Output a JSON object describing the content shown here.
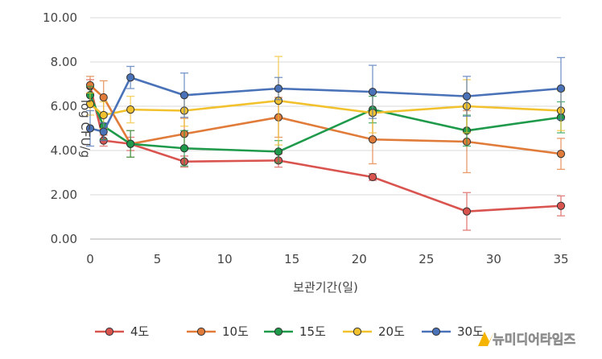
{
  "chart_data": {
    "type": "line",
    "title": "",
    "xlabel": "보관기간(일)",
    "ylabel": "log CFU/g",
    "xlim": [
      0,
      35
    ],
    "ylim": [
      0,
      10
    ],
    "x_ticks": [
      "0",
      "5",
      "10",
      "15",
      "20",
      "25",
      "30",
      "35"
    ],
    "y_ticks": [
      "0.00",
      "2.00",
      "4.00",
      "6.00",
      "8.00",
      "10.00"
    ],
    "grid": "horizontal",
    "legend": "bottom",
    "series": [
      {
        "name": "4도",
        "color": "#d9534f",
        "x": [
          0,
          1,
          3,
          7,
          14,
          21,
          28,
          35
        ],
        "y": [
          6.9,
          4.45,
          4.3,
          3.5,
          3.55,
          2.8,
          1.25,
          1.5
        ],
        "err": [
          0.3,
          0.25,
          0.3,
          0.25,
          0.3,
          0.15,
          0.85,
          0.45
        ]
      },
      {
        "name": "10도",
        "color": "#e07b39",
        "x": [
          0,
          1,
          3,
          7,
          14,
          21,
          28,
          35
        ],
        "y": [
          6.95,
          6.4,
          4.3,
          4.75,
          5.5,
          4.5,
          4.4,
          3.85
        ],
        "err": [
          0.4,
          0.75,
          0.6,
          0.7,
          0.9,
          1.1,
          1.4,
          0.7
        ]
      },
      {
        "name": "15도",
        "color": "#1e9a4a",
        "x": [
          0,
          1,
          3,
          7,
          14,
          21,
          28,
          35
        ],
        "y": [
          6.5,
          5.1,
          4.3,
          4.1,
          3.95,
          5.85,
          4.9,
          5.5
        ],
        "err": [
          0.4,
          0.6,
          0.6,
          0.8,
          0.5,
          0.6,
          0.7,
          0.7
        ]
      },
      {
        "name": "20도",
        "color": "#f2c12e",
        "x": [
          0,
          1,
          3,
          7,
          14,
          21,
          28,
          35
        ],
        "y": [
          6.1,
          5.6,
          5.85,
          5.8,
          6.25,
          5.7,
          6.0,
          5.8
        ],
        "err": [
          0.5,
          0.6,
          0.6,
          0.7,
          2.0,
          0.9,
          1.2,
          0.9
        ]
      },
      {
        "name": "30도",
        "color": "#4a72b8",
        "x": [
          0,
          1,
          3,
          7,
          14,
          21,
          28,
          35
        ],
        "y": [
          5.0,
          4.85,
          7.3,
          6.5,
          6.8,
          6.65,
          6.45,
          6.8
        ],
        "err": [
          0.8,
          0.4,
          0.5,
          1.0,
          0.5,
          1.2,
          0.9,
          1.4
        ]
      }
    ]
  },
  "watermark": {
    "text": "뉴미디어타임즈"
  }
}
